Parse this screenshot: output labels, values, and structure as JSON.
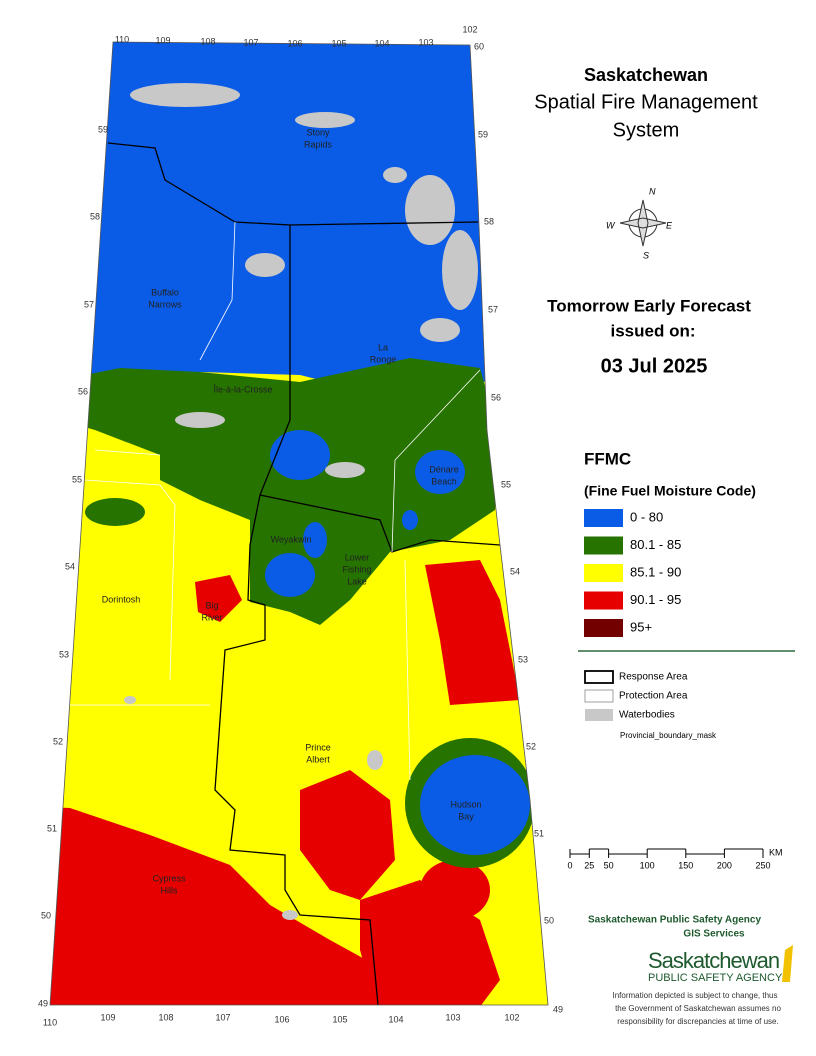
{
  "header": {
    "title": "Saskatchewan",
    "subtitle_lines": [
      "Spatial Fire Management",
      "System"
    ]
  },
  "forecast": {
    "title_lines": [
      "Tomorrow Early Forecast",
      "issued on:"
    ],
    "date": "03 Jul 2025"
  },
  "compass": {
    "labels": [
      "N",
      "E",
      "S",
      "W"
    ]
  },
  "legend": {
    "title": "FFMC",
    "subtitle": "(Fine Fuel Moisture Code)",
    "items": [
      {
        "label": "0 - 80",
        "color": "#0a5ce6"
      },
      {
        "label": "80.1 - 85",
        "color": "#267300"
      },
      {
        "label": "85.1 - 90",
        "color": "#ffff00"
      },
      {
        "label": "90.1 - 95",
        "color": "#e60000"
      },
      {
        "label": "95+",
        "color": "#730000"
      }
    ]
  },
  "layers": [
    "Response Area",
    "Protection Area",
    "Waterbodies",
    "Provincial_boundary_mask"
  ],
  "places": [
    {
      "lines": [
        "Stony",
        "Rapids"
      ]
    },
    {
      "lines": [
        "Buffalo",
        "Narrows"
      ]
    },
    {
      "lines": [
        "La",
        "Ronge"
      ]
    },
    {
      "lines": [
        "Île-à-la-Crosse"
      ]
    },
    {
      "lines": [
        "Dénare",
        "Beach"
      ]
    },
    {
      "lines": [
        "Weyakwin"
      ]
    },
    {
      "lines": [
        "Lower",
        "Fishing",
        "Lake"
      ]
    },
    {
      "lines": [
        "Dorintosh"
      ]
    },
    {
      "lines": [
        "Big",
        "River"
      ]
    },
    {
      "lines": [
        "Prince",
        "Albert"
      ]
    },
    {
      "lines": [
        "Hudson",
        "Bay"
      ]
    },
    {
      "lines": [
        "Cypress",
        "Hills"
      ]
    }
  ],
  "grid_labels": {
    "top": [
      "110",
      "109",
      "108",
      "107",
      "106",
      "105",
      "104",
      "103",
      "102",
      "60"
    ],
    "left": [
      "59",
      "58",
      "57",
      "56",
      "55",
      "54",
      "53",
      "52",
      "51",
      "50",
      "49"
    ],
    "right": [
      "59",
      "58",
      "57",
      "56",
      "55",
      "54",
      "53",
      "52",
      "51",
      "50",
      "49"
    ],
    "bottom": [
      "110",
      "109",
      "108",
      "107",
      "106",
      "105",
      "104",
      "103",
      "102"
    ]
  },
  "scale": {
    "ticks": [
      0,
      25,
      50,
      100,
      150,
      200,
      250
    ],
    "unit": "KM"
  },
  "footer": {
    "agency": "Saskatchewan Public Safety Agency",
    "unit": "GIS  Services",
    "logo_lines": [
      "Saskatchewan",
      "PUBLIC SAFETY AGENCY"
    ],
    "disclaimer_lines": [
      "Information depicted is subject to change, thus",
      "the Government of Saskatchewan assumes no",
      "responsibility for discrepancies at time of use."
    ]
  }
}
